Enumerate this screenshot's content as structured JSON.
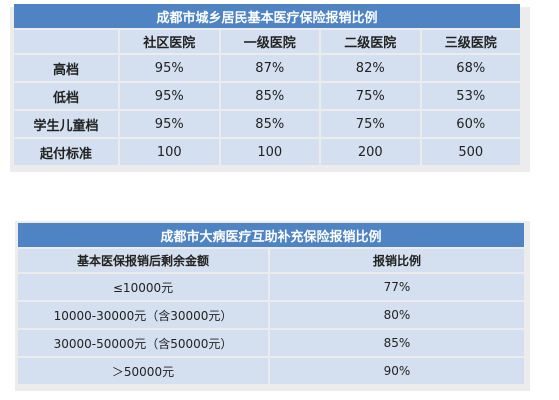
{
  "table1": {
    "title": "成都市城乡居民基本医疗保险报销比例",
    "headers": [
      "",
      "社区医院",
      "一级医院",
      "二级医院",
      "三级医院"
    ],
    "rows": [
      {
        "label": "高档",
        "values": [
          "95%",
          "87%",
          "82%",
          "68%"
        ]
      },
      {
        "label": "低档",
        "values": [
          "95%",
          "85%",
          "75%",
          "53%"
        ]
      },
      {
        "label": "学生儿童档",
        "values": [
          "95%",
          "85%",
          "75%",
          "60%"
        ]
      },
      {
        "label": "起付标准",
        "values": [
          "100",
          "100",
          "200",
          "500"
        ]
      }
    ]
  },
  "table2": {
    "title": "成都市大病医疗互助补充保险报销比例",
    "headers": [
      "基本医保报销后剩余金额",
      "报销比例"
    ],
    "rows": [
      {
        "range": "≤10000元",
        "ratio": "77%"
      },
      {
        "range": "10000-30000元（含30000元）",
        "ratio": "80%"
      },
      {
        "range": "30000-50000元（含50000元）",
        "ratio": "85%"
      },
      {
        "range": "＞50000元",
        "ratio": "90%"
      }
    ]
  },
  "colors": {
    "title_bg": "#4f84c4",
    "cell_bg": "#d4e0ef",
    "panel_bg": "#ececec"
  }
}
